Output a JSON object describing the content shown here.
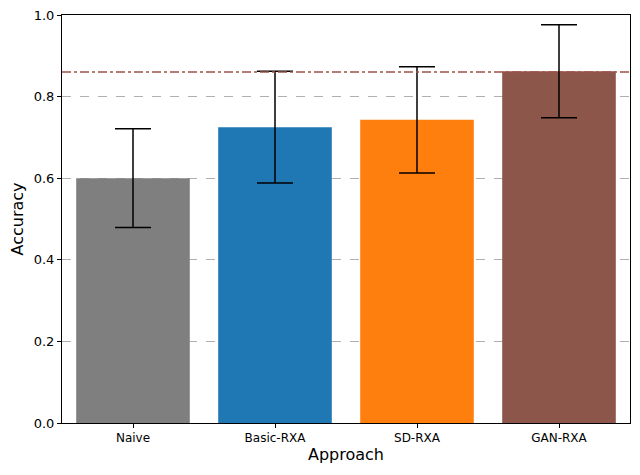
{
  "chart_data": {
    "type": "bar",
    "x_label": "Approach",
    "y_label": "Accuracy",
    "categories": [
      "Naive",
      "Basic-RXA",
      "SD-RXA",
      "GAN-RXA"
    ],
    "values": [
      0.6,
      0.725,
      0.743,
      0.862
    ],
    "errors": [
      0.121,
      0.137,
      0.13,
      0.114
    ],
    "colors": [
      "#7f7f7f",
      "#1f77b4",
      "#ff7f0e",
      "#8c564b"
    ],
    "reference_line": {
      "value": 0.86,
      "color": "#a0524a",
      "line_style": "dashdot"
    },
    "ylim": [
      0,
      1
    ],
    "yticks": [
      {
        "value": 0,
        "label": "0.0"
      },
      0.2,
      0.4,
      0.6,
      0.8,
      {
        "value": 1,
        "label": "1.0"
      }
    ],
    "grid": true
  }
}
